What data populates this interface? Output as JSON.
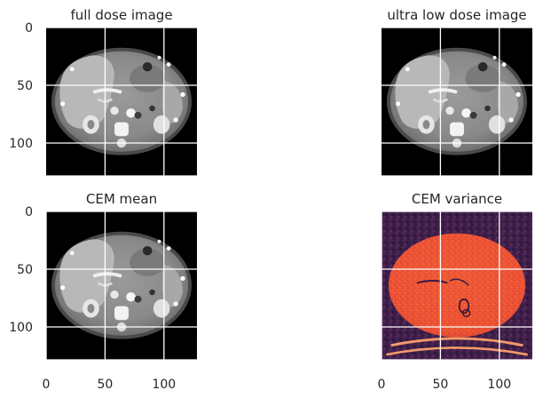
{
  "chart_data": [
    {
      "type": "heatmap",
      "title": "full dose image",
      "colormap": "gray",
      "xlim": [
        0,
        128
      ],
      "ylim": [
        128,
        0
      ],
      "xticks": [],
      "yticks": [
        0,
        50,
        100
      ],
      "grid": true
    },
    {
      "type": "heatmap",
      "title": "ultra low dose image",
      "colormap": "gray",
      "xlim": [
        0,
        128
      ],
      "ylim": [
        128,
        0
      ],
      "xticks": [],
      "yticks": [],
      "grid": true
    },
    {
      "type": "heatmap",
      "title": "CEM mean",
      "colormap": "gray",
      "xlim": [
        0,
        128
      ],
      "ylim": [
        128,
        0
      ],
      "xticks": [
        0,
        50,
        100
      ],
      "yticks": [
        0,
        50,
        100
      ],
      "grid": true
    },
    {
      "type": "heatmap",
      "title": "CEM variance",
      "colormap": "inferno",
      "xlim": [
        0,
        128
      ],
      "ylim": [
        128,
        0
      ],
      "xticks": [
        0,
        50,
        100
      ],
      "yticks": [],
      "grid": true
    }
  ]
}
